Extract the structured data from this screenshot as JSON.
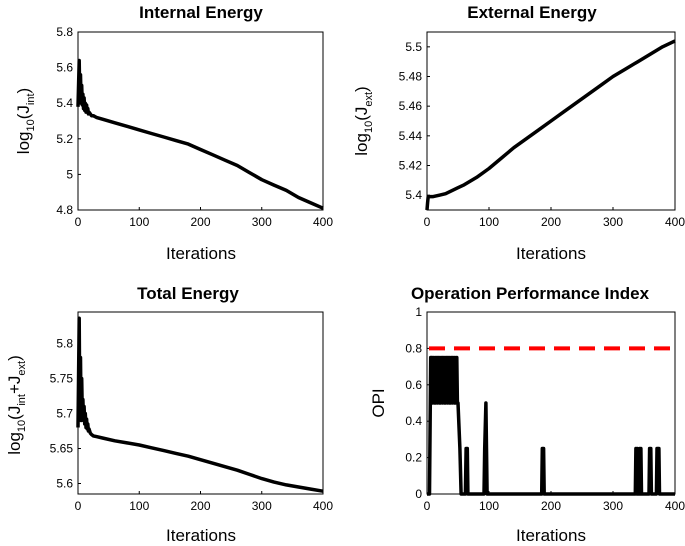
{
  "chart_data": [
    {
      "type": "line",
      "title": "Internal Energy",
      "xlabel": "Iterations",
      "ylabel": {
        "main": "log",
        "sub1": "10",
        "mid": "(J",
        "sub2": "int",
        "end": ")"
      },
      "xlim": [
        0,
        400
      ],
      "ylim": [
        4.8,
        5.8
      ],
      "xticks": [
        0,
        100,
        200,
        300,
        400
      ],
      "yticks": [
        4.8,
        5,
        5.2,
        5.4,
        5.6,
        5.8
      ],
      "ytick_labels": [
        "4.8",
        "5",
        "5.2",
        "5.4",
        "5.6",
        "5.8"
      ],
      "color": "#000000",
      "x": [
        0,
        2,
        3,
        4,
        5,
        6,
        7,
        8,
        9,
        10,
        11,
        12,
        13,
        14,
        15,
        16,
        17,
        18,
        20,
        22,
        25,
        30,
        40,
        60,
        80,
        100,
        120,
        140,
        160,
        180,
        200,
        220,
        240,
        260,
        280,
        300,
        320,
        340,
        360,
        380,
        400
      ],
      "y": [
        5.38,
        5.64,
        5.42,
        5.56,
        5.4,
        5.5,
        5.39,
        5.45,
        5.37,
        5.43,
        5.36,
        5.4,
        5.35,
        5.39,
        5.35,
        5.37,
        5.34,
        5.35,
        5.34,
        5.33,
        5.33,
        5.32,
        5.31,
        5.29,
        5.27,
        5.25,
        5.23,
        5.21,
        5.19,
        5.17,
        5.14,
        5.11,
        5.08,
        5.05,
        5.01,
        4.97,
        4.94,
        4.91,
        4.87,
        4.84,
        4.81
      ]
    },
    {
      "type": "line",
      "title": "External Energy",
      "xlabel": "Iterations",
      "ylabel": {
        "main": "log",
        "sub1": "10",
        "mid": "(J",
        "sub2": "ext",
        "end": ")"
      },
      "xlim": [
        0,
        400
      ],
      "ylim": [
        5.39,
        5.51
      ],
      "xticks": [
        0,
        100,
        200,
        300,
        400
      ],
      "yticks": [
        5.4,
        5.42,
        5.44,
        5.46,
        5.48,
        5.5
      ],
      "ytick_labels": [
        "5.4",
        "5.42",
        "5.44",
        "5.46",
        "5.48",
        "5.5"
      ],
      "color": "#000000",
      "x": [
        0,
        1,
        2,
        3,
        5,
        10,
        20,
        30,
        40,
        50,
        60,
        80,
        100,
        120,
        140,
        160,
        180,
        200,
        220,
        240,
        260,
        280,
        300,
        320,
        340,
        360,
        380,
        400
      ],
      "y": [
        5.39,
        5.395,
        5.399,
        5.399,
        5.399,
        5.399,
        5.4,
        5.401,
        5.403,
        5.405,
        5.407,
        5.412,
        5.418,
        5.425,
        5.432,
        5.438,
        5.444,
        5.45,
        5.456,
        5.462,
        5.468,
        5.474,
        5.48,
        5.485,
        5.49,
        5.495,
        5.5,
        5.504
      ]
    },
    {
      "type": "line",
      "title": "Total Energy",
      "xlabel": "Iterations",
      "ylabel": {
        "main": "log",
        "sub1": "10",
        "mid": "(J",
        "sub2": "int",
        "mid2": "+J",
        "sub3": "ext",
        "end": ")"
      },
      "xlim": [
        0,
        400
      ],
      "ylim": [
        5.585,
        5.845
      ],
      "xticks": [
        0,
        100,
        200,
        300,
        400
      ],
      "yticks": [
        5.6,
        5.65,
        5.7,
        5.75,
        5.8
      ],
      "ytick_labels": [
        "5.6",
        "5.65",
        "5.7",
        "5.75",
        "5.8"
      ],
      "color": "#000000",
      "x": [
        0,
        2,
        3,
        4,
        5,
        6,
        7,
        8,
        9,
        10,
        11,
        12,
        13,
        14,
        15,
        16,
        17,
        18,
        20,
        22,
        25,
        30,
        40,
        60,
        80,
        100,
        120,
        140,
        160,
        180,
        200,
        220,
        240,
        260,
        280,
        300,
        320,
        340,
        360,
        380,
        400
      ],
      "y": [
        5.68,
        5.836,
        5.7,
        5.78,
        5.69,
        5.75,
        5.7,
        5.72,
        5.69,
        5.71,
        5.685,
        5.7,
        5.68,
        5.692,
        5.678,
        5.685,
        5.675,
        5.678,
        5.672,
        5.67,
        5.668,
        5.667,
        5.665,
        5.661,
        5.658,
        5.655,
        5.651,
        5.647,
        5.643,
        5.639,
        5.634,
        5.629,
        5.624,
        5.619,
        5.613,
        5.607,
        5.602,
        5.598,
        5.595,
        5.592,
        5.589
      ]
    },
    {
      "type": "line",
      "title": "Operation Performance Index",
      "xlabel": "Iterations",
      "ylabel": {
        "main": "OPI"
      },
      "xlim": [
        0,
        400
      ],
      "ylim": [
        0,
        1
      ],
      "xticks": [
        0,
        100,
        200,
        300,
        400
      ],
      "yticks": [
        0,
        0.2,
        0.4,
        0.6,
        0.8,
        1
      ],
      "ytick_labels": [
        "0",
        "0.2",
        "0.4",
        "0.6",
        "0.8",
        "1"
      ],
      "color": "#000000",
      "threshold": {
        "y": 0.8,
        "color": "#ff0000",
        "style": "dashed"
      },
      "x": [
        0,
        4,
        6,
        8,
        9,
        10,
        12,
        13,
        14,
        16,
        17,
        18,
        20,
        21,
        22,
        24,
        25,
        26,
        28,
        29,
        30,
        32,
        33,
        34,
        36,
        37,
        38,
        40,
        41,
        42,
        44,
        45,
        46,
        48,
        49,
        50,
        53,
        55,
        58,
        62,
        63,
        65,
        66,
        68,
        92,
        93,
        95,
        96,
        97,
        98,
        100,
        185,
        186,
        187,
        188,
        189,
        190,
        336,
        337,
        338,
        339,
        340,
        342,
        343,
        344,
        345,
        346,
        347,
        358,
        359,
        360,
        361,
        362,
        370,
        371,
        372,
        373,
        374,
        375,
        376,
        400
      ],
      "y": [
        0,
        0,
        0.75,
        0.75,
        0.5,
        0.75,
        0.5,
        0.75,
        0.5,
        0.75,
        0.5,
        0.75,
        0.5,
        0.75,
        0.5,
        0.75,
        0.5,
        0.75,
        0.5,
        0.75,
        0.5,
        0.75,
        0.5,
        0.75,
        0.5,
        0.75,
        0.5,
        0.75,
        0.5,
        0.75,
        0.5,
        0.75,
        0.5,
        0.75,
        0.5,
        0.5,
        0.25,
        0,
        0,
        0,
        0.25,
        0.25,
        0,
        0,
        0,
        0.25,
        0.5,
        0.25,
        0,
        0,
        0,
        0,
        0.25,
        0.25,
        0.25,
        0,
        0,
        0,
        0.25,
        0,
        0.25,
        0,
        0,
        0.25,
        0,
        0.25,
        0,
        0,
        0,
        0.25,
        0.25,
        0.25,
        0,
        0,
        0.25,
        0.25,
        0.25,
        0.25,
        0,
        0,
        0
      ]
    }
  ]
}
